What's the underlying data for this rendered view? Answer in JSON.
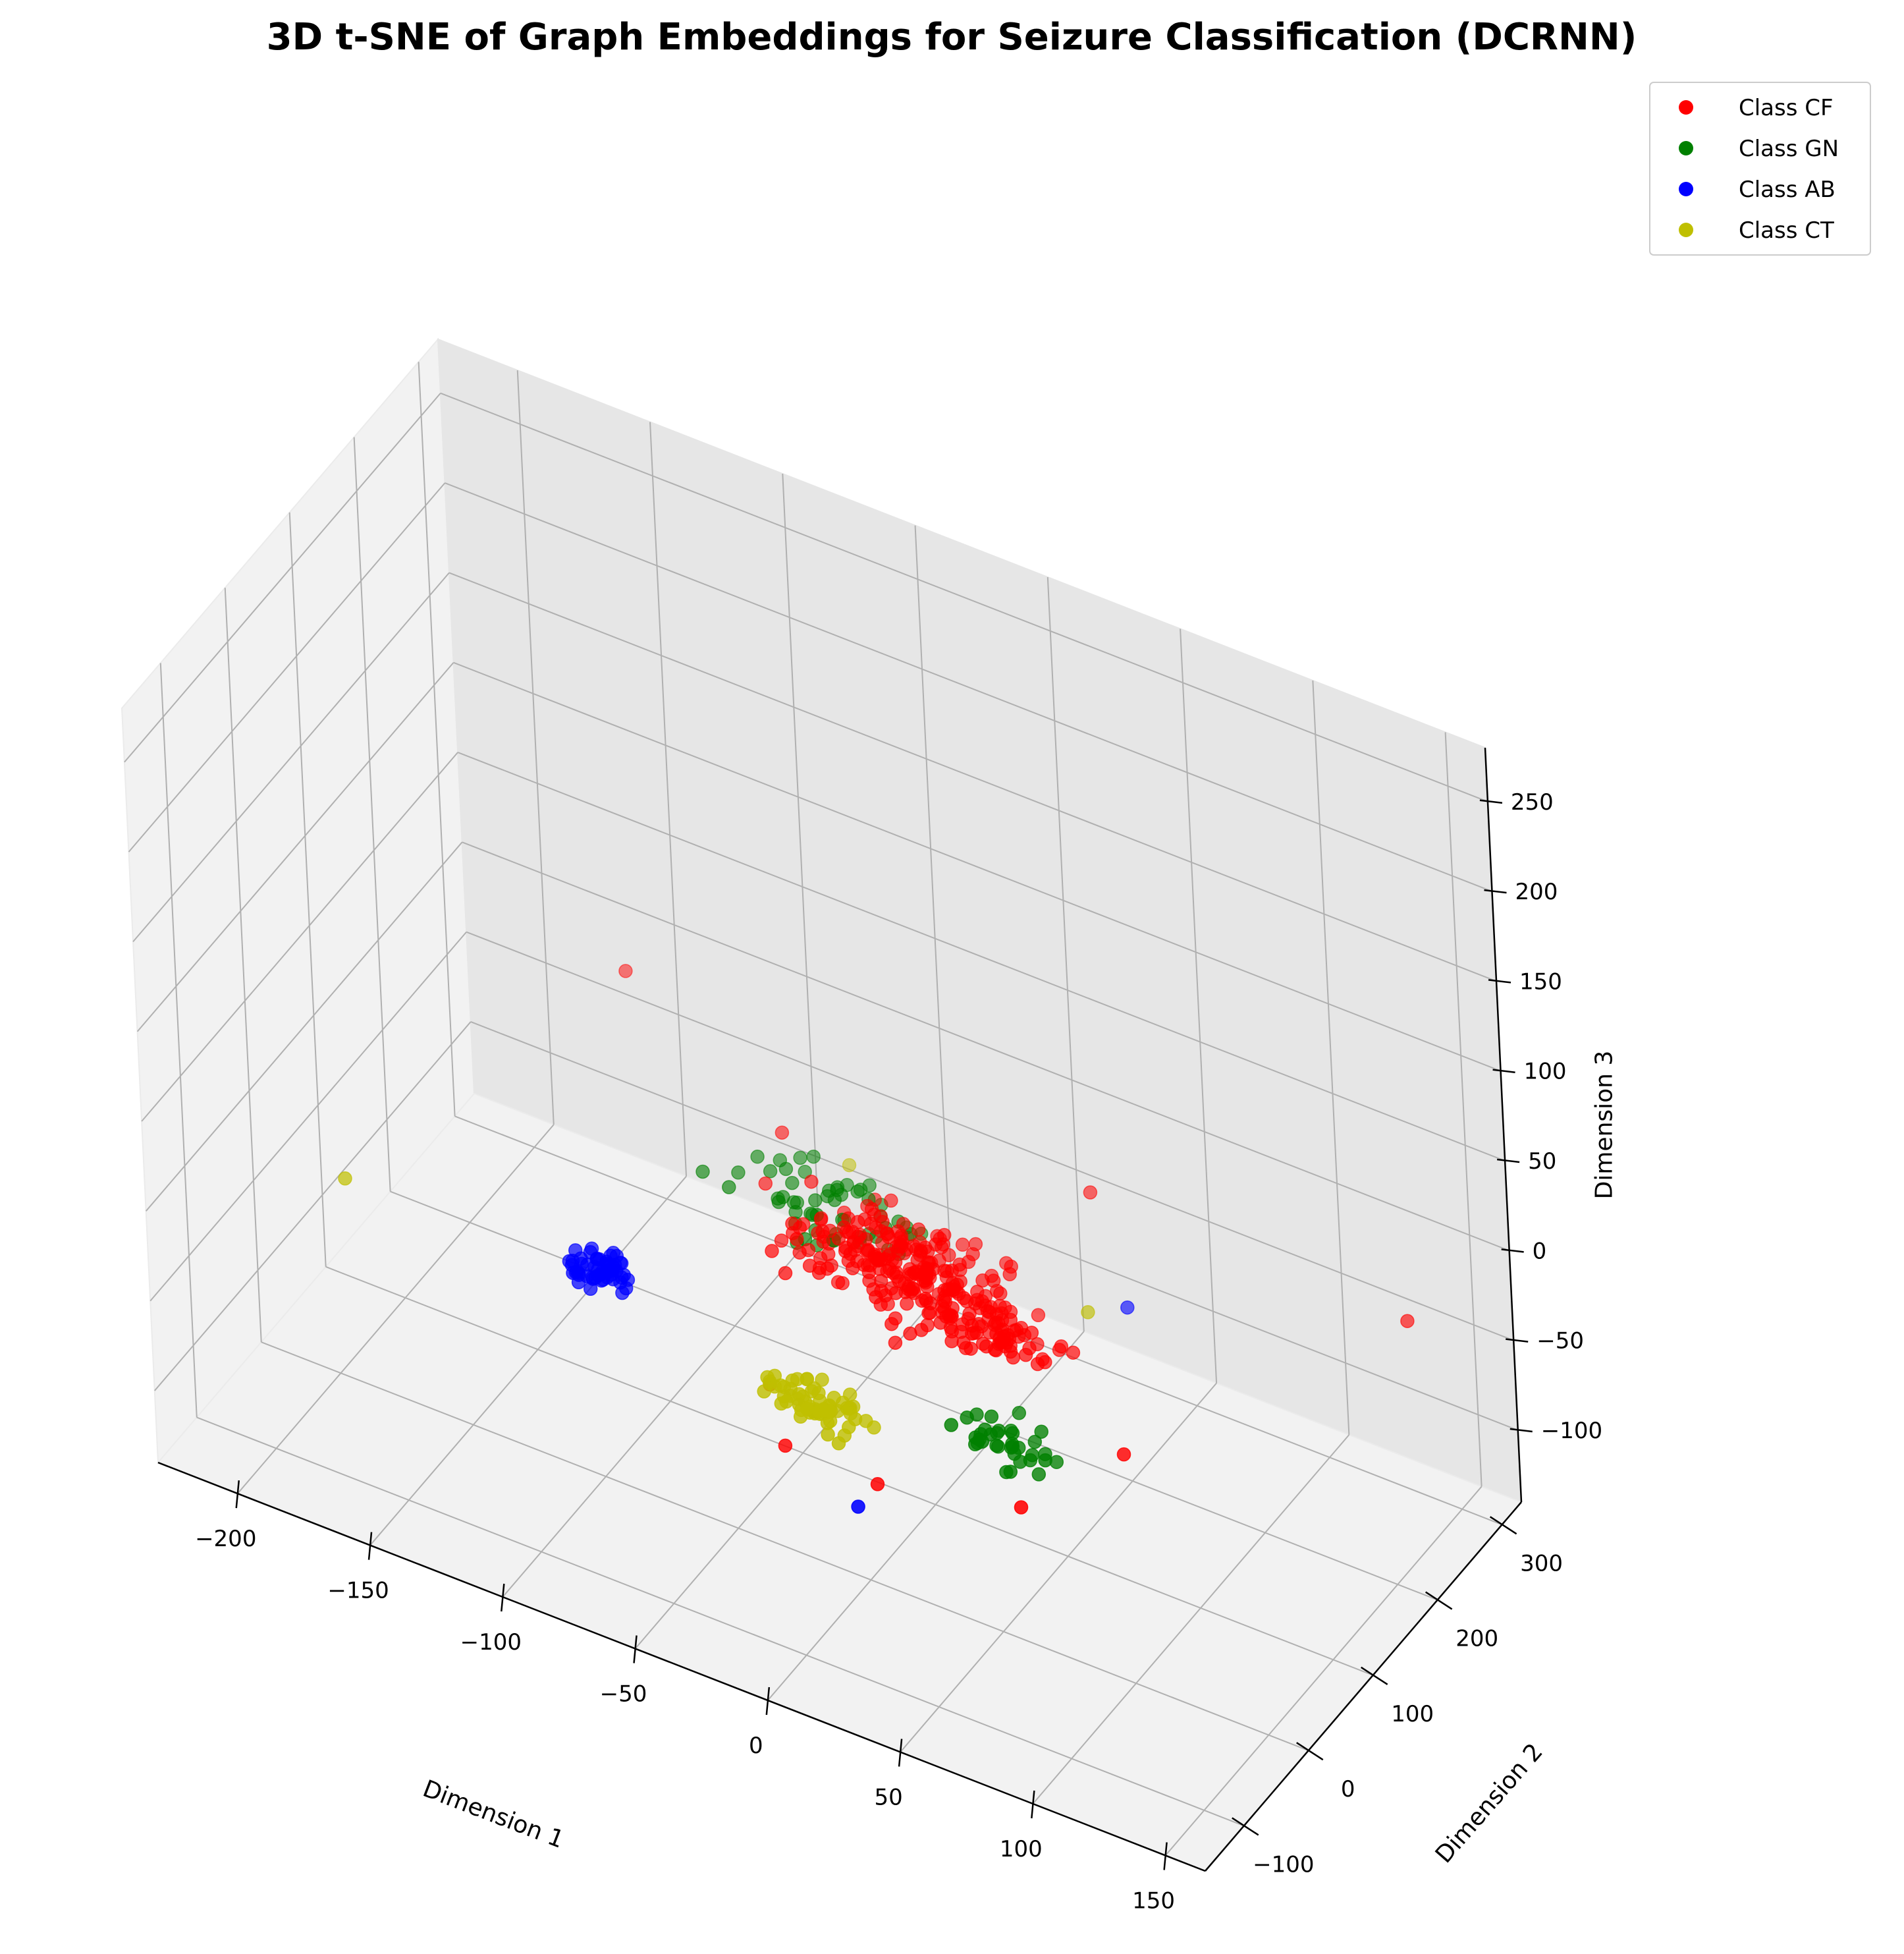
{
  "chart_data": {
    "type": "scatter",
    "projection": "3d",
    "title": "3D t-SNE of Graph Embeddings for Seizure Classification (DCRNN)",
    "xlabel": "Dimension 1",
    "ylabel": "Dimension 2",
    "zlabel": "Dimension 3",
    "xlim": [
      -230,
      165
    ],
    "ylim": [
      -160,
      330
    ],
    "zlim": [
      -140,
      280
    ],
    "xticks": [
      -200,
      -150,
      -100,
      -50,
      0,
      50,
      100,
      150
    ],
    "yticks": [
      -100,
      0,
      100,
      200,
      300
    ],
    "zticks": [
      -100,
      -50,
      0,
      50,
      100,
      150,
      200,
      250
    ],
    "xtick_labels": [
      "−200",
      "−150",
      "−100",
      "−50",
      "0",
      "50",
      "100",
      "150"
    ],
    "ytick_labels": [
      "−100",
      "0",
      "100",
      "200",
      "300"
    ],
    "ztick_labels": [
      "−100",
      "−50",
      "0",
      "50",
      "100",
      "150",
      "200",
      "250"
    ],
    "grid": true,
    "legend_position": "top-right",
    "series": [
      {
        "name": "Class CF",
        "color": "#ff0000",
        "clusters": [
          {
            "center": [
              0,
              70,
              5
            ],
            "spread": [
              55,
              55,
              22
            ],
            "count": 240
          },
          {
            "center": [
              40,
              50,
              0
            ],
            "spread": [
              30,
              30,
              15
            ],
            "count": 60
          }
        ],
        "points": [
          [
            -125,
            160,
            60
          ],
          [
            -60,
            130,
            20
          ],
          [
            60,
            120,
            60
          ],
          [
            190,
            80,
            80
          ],
          [
            110,
            -40,
            10
          ],
          [
            80,
            -80,
            -20
          ],
          [
            20,
            -60,
            -50
          ],
          [
            -30,
            -20,
            -40
          ],
          [
            -20,
            -40,
            -60
          ]
        ]
      },
      {
        "name": "Class GN",
        "color": "#008000",
        "clusters": [
          {
            "center": [
              -40,
              110,
              0
            ],
            "spread": [
              55,
              50,
              18
            ],
            "count": 55
          },
          {
            "center": [
              60,
              -20,
              -20
            ],
            "spread": [
              25,
              30,
              15
            ],
            "count": 35
          }
        ],
        "points": []
      },
      {
        "name": "Class AB",
        "color": "#0000ff",
        "clusters": [
          {
            "center": [
              -105,
              30,
              -40
            ],
            "spread": [
              16,
              28,
              10
            ],
            "count": 55
          }
        ],
        "points": [
          [
            20,
            -90,
            -50
          ],
          [
            80,
            90,
            20
          ]
        ]
      },
      {
        "name": "Class CT",
        "color": "#bfbf00",
        "clusters": [
          {
            "center": [
              -10,
              -30,
              -35
            ],
            "spread": [
              28,
              30,
              10
            ],
            "count": 65
          }
        ],
        "points": [
          [
            -200,
            20,
            -40
          ],
          [
            -40,
            150,
            5
          ],
          [
            70,
            70,
            20
          ]
        ]
      }
    ]
  }
}
